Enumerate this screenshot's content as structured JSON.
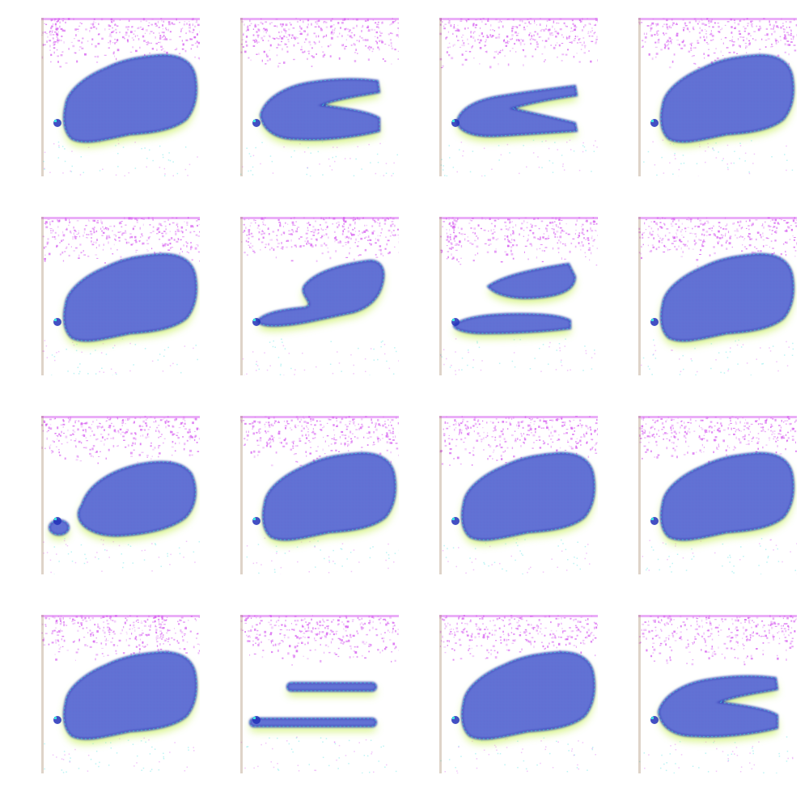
{
  "figure": {
    "description_kind": "grid-of-generated-samples",
    "rows": 4,
    "columns": 4,
    "tiles": [
      {
        "variant": "full-blob"
      },
      {
        "variant": "blob-with-notch"
      },
      {
        "variant": "two-prongs"
      },
      {
        "variant": "full-blob"
      },
      {
        "variant": "full-blob"
      },
      {
        "variant": "split-lower-tail"
      },
      {
        "variant": "two-prongs-offset"
      },
      {
        "variant": "full-blob"
      },
      {
        "variant": "detached-dot"
      },
      {
        "variant": "full-blob"
      },
      {
        "variant": "full-blob"
      },
      {
        "variant": "full-blob"
      },
      {
        "variant": "full-blob"
      },
      {
        "variant": "two-bars"
      },
      {
        "variant": "full-blob"
      },
      {
        "variant": "blob-with-notch"
      }
    ],
    "colors": {
      "background": "#ffffff",
      "magenta_noise": "#d65cf0",
      "blob_fill": "#5a6ed2",
      "blob_edge": "#2230b8",
      "halo": "#c8f05a",
      "accent_cyan": "#3fe0e0",
      "accent_red": "#e04040"
    }
  }
}
